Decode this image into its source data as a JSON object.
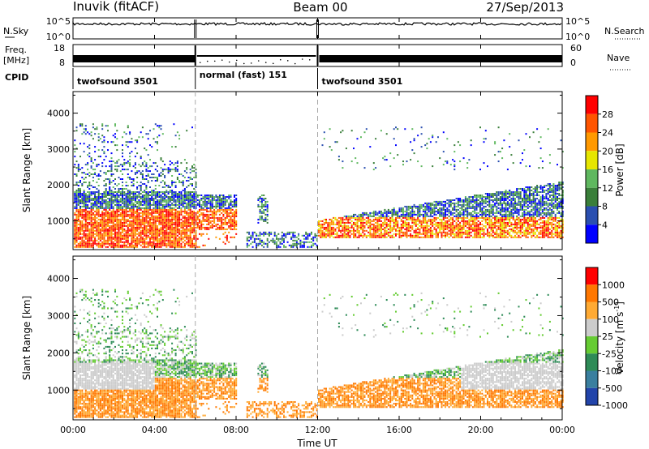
{
  "header": {
    "station": "Inuvik (fitACF)",
    "beam": "Beam 00",
    "date": "27/Sep/2013"
  },
  "colors": {
    "power": [
      "#0000ff",
      "#2a4fb0",
      "#3a7f3a",
      "#5fb85f",
      "#e6e600",
      "#ff9900",
      "#ff5500",
      "#ff0000"
    ],
    "velocity": [
      "#2244aa",
      "#3a7f9f",
      "#2e8b57",
      "#66cc33",
      "#cccccc",
      "#ffaa33",
      "#ff7700",
      "#ff0000"
    ]
  },
  "chart_data": [
    {
      "type": "line",
      "name": "noise-panel",
      "left_label_line1": "N.Sky",
      "right_label": "N.Search",
      "left_ticks": [
        "10^5",
        "10^0"
      ],
      "right_ticks": [
        "10^5",
        "10^0"
      ],
      "x_range_hours": [
        0,
        24
      ]
    },
    {
      "type": "line",
      "name": "freq-panel",
      "left_label_line1": "Freq.",
      "left_label_line2": "[MHz]",
      "right_label": "Nave",
      "left_ticks": [
        "18",
        "8"
      ],
      "right_ticks": [
        "60",
        "0"
      ],
      "cpid_label": "CPID",
      "cpid_segments": [
        {
          "start": 0,
          "end": 6,
          "label": "twofsound 3501"
        },
        {
          "start": 6,
          "end": 12,
          "label": "normal (fast) 151"
        },
        {
          "start": 12,
          "end": 24,
          "label": "twofsound 3501"
        }
      ]
    },
    {
      "type": "heatmap",
      "name": "power-panel",
      "ylabel": "Slant Range [km]",
      "ylim": [
        200,
        4600
      ],
      "yticks": [
        1000,
        2000,
        3000,
        4000
      ],
      "colorbar_label": "Power [dB]",
      "colorbar_ticks": [
        "28",
        "24",
        "20",
        "16",
        "12",
        "8",
        "4"
      ]
    },
    {
      "type": "heatmap",
      "name": "velocity-panel",
      "ylabel": "Slant Range [km]",
      "ylim": [
        200,
        4600
      ],
      "yticks": [
        1000,
        2000,
        3000,
        4000
      ],
      "colorbar_label": "Velocity [m s",
      "colorbar_label_sup": "-1",
      "colorbar_label_end": "]",
      "colorbar_ticks": [
        "1000",
        "500",
        "100",
        "25",
        "-25",
        "-100",
        "-500",
        "-1000"
      ]
    }
  ],
  "xaxis": {
    "ticks": [
      "00:00",
      "04:00",
      "08:00",
      "12:00",
      "16:00",
      "20:00",
      "00:00"
    ],
    "label": "Time UT"
  }
}
